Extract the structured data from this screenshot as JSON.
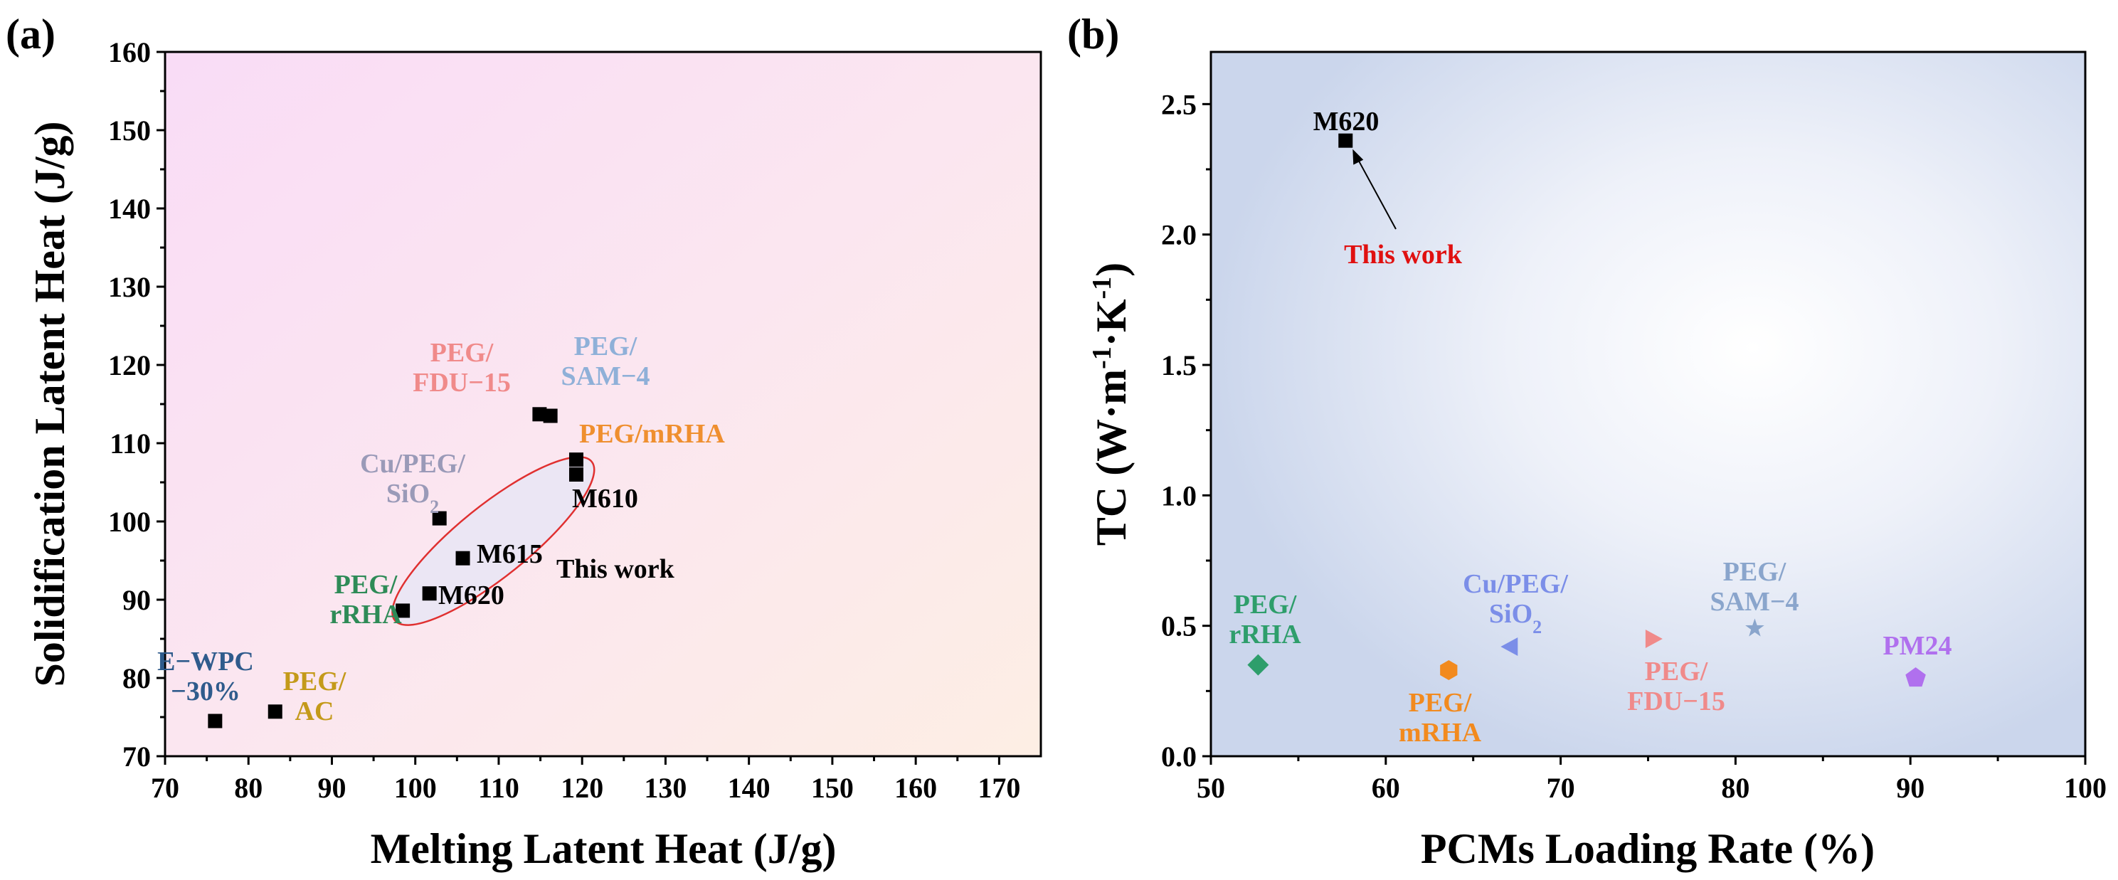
{
  "chart_data": [
    {
      "type": "scatter",
      "panel_label": "(a)",
      "xlabel": "Melting Latent Heat (J/g)",
      "ylabel": "Solidification Latent Heat (J/g)",
      "xlim": [
        70,
        175
      ],
      "ylim": [
        70,
        160
      ],
      "xticks": [
        70,
        80,
        90,
        100,
        110,
        120,
        130,
        140,
        150,
        160,
        170
      ],
      "yticks": [
        70,
        80,
        90,
        100,
        110,
        120,
        130,
        140,
        150,
        160
      ],
      "series": [
        {
          "name": "E-WPC-30%",
          "x": 76,
          "y": 74.5,
          "marker": "square",
          "color": "#000000"
        },
        {
          "name": "PEG/AC",
          "x": 83.2,
          "y": 75.7,
          "marker": "square",
          "color": "#000000"
        },
        {
          "name": "PEG/rRHA",
          "x": 98.5,
          "y": 88.6,
          "marker": "square",
          "color": "#000000"
        },
        {
          "name": "M620",
          "x": 101.7,
          "y": 90.8,
          "marker": "square",
          "color": "#000000"
        },
        {
          "name": "M615",
          "x": 105.7,
          "y": 95.3,
          "marker": "square",
          "color": "#000000"
        },
        {
          "name": "Cu/PEG/SiO2",
          "x": 102.9,
          "y": 100.4,
          "marker": "square",
          "color": "#000000"
        },
        {
          "name": "M610",
          "x": 119.3,
          "y": 106.0,
          "marker": "square",
          "color": "#000000"
        },
        {
          "name": "PEG/mRHA",
          "x": 119.3,
          "y": 107.9,
          "marker": "square",
          "color": "#000000"
        },
        {
          "name": "PEG/FDU-15",
          "x": 114.9,
          "y": 113.7,
          "marker": "square",
          "color": "#000000"
        },
        {
          "name": "PEG/SAM-4",
          "x": 116.2,
          "y": 113.5,
          "marker": "square",
          "color": "#000000"
        }
      ],
      "annotations": [
        {
          "lines": [
            "E−WPC",
            "−30%"
          ],
          "color": "#2f5b8c"
        },
        {
          "lines": [
            "PEG/",
            "AC"
          ],
          "color": "#c49a1a"
        },
        {
          "lines": [
            "PEG/",
            "rRHA"
          ],
          "color": "#2e8b57"
        },
        {
          "lines": [
            "M620"
          ],
          "color": "#000000"
        },
        {
          "lines": [
            "M615"
          ],
          "color": "#000000"
        },
        {
          "lines": [
            "Cu/PEG/",
            "SiO2"
          ],
          "color": "#9a9ab8"
        },
        {
          "lines": [
            "M610"
          ],
          "color": "#000000"
        },
        {
          "lines": [
            "PEG/mRHA"
          ],
          "color": "#ef8f2f"
        },
        {
          "lines": [
            "PEG/",
            "FDU−15"
          ],
          "color": "#f08a8a"
        },
        {
          "lines": [
            "PEG/",
            "SAM−4"
          ],
          "color": "#8fb0d8"
        },
        {
          "lines": [
            "This work"
          ],
          "color": "#000000"
        }
      ],
      "highlight": {
        "label": "This work",
        "shape": "ellipse",
        "color": "#e03030"
      }
    },
    {
      "type": "scatter",
      "panel_label": "(b)",
      "xlabel": "PCMs Loading Rate (%)",
      "ylabel": "TC (W·m⁻¹·K⁻¹)",
      "ylabel_parts": [
        "TC (W·m",
        "-1",
        "·K",
        "-1",
        ")"
      ],
      "xlim": [
        50,
        100
      ],
      "ylim": [
        0,
        2.7
      ],
      "xticks": [
        50,
        60,
        70,
        80,
        90,
        100
      ],
      "yticks": [
        0.0,
        0.5,
        1.0,
        1.5,
        2.0,
        2.5
      ],
      "ytick_labels": [
        "0.0",
        "0.5",
        "1.0",
        "1.5",
        "2.0",
        "2.5"
      ],
      "series": [
        {
          "name": "M620",
          "x": 57.7,
          "y": 2.36,
          "marker": "square",
          "color": "#000000"
        },
        {
          "name": "PEG/rRHA",
          "x": 52.7,
          "y": 0.35,
          "marker": "diamond",
          "color": "#2e9e6b"
        },
        {
          "name": "PEG/mRHA",
          "x": 63.6,
          "y": 0.33,
          "marker": "hexagon",
          "color": "#f28a1e"
        },
        {
          "name": "Cu/PEG/SiO2",
          "x": 67.1,
          "y": 0.42,
          "marker": "triangle-left",
          "color": "#7b8ee8"
        },
        {
          "name": "PEG/FDU-15",
          "x": 75.3,
          "y": 0.45,
          "marker": "triangle-right",
          "color": "#f08a8a"
        },
        {
          "name": "PEG/SAM-4",
          "x": 81.1,
          "y": 0.49,
          "marker": "star",
          "color": "#8aa5cc"
        },
        {
          "name": "PM24",
          "x": 90.3,
          "y": 0.3,
          "marker": "pentagon",
          "color": "#b070ee"
        }
      ],
      "annotations": [
        {
          "lines": [
            "M620"
          ],
          "color": "#000000"
        },
        {
          "lines": [
            "This work"
          ],
          "color": "#e01010"
        },
        {
          "lines": [
            "PEG/",
            "rRHA"
          ],
          "color": "#2e9e6b"
        },
        {
          "lines": [
            "PEG/",
            "mRHA"
          ],
          "color": "#f28a1e"
        },
        {
          "lines": [
            "Cu/PEG/",
            "SiO2"
          ],
          "color": "#7b8ee8"
        },
        {
          "lines": [
            "PEG/",
            "FDU−15"
          ],
          "color": "#f08a8a"
        },
        {
          "lines": [
            "PEG/",
            "SAM−4"
          ],
          "color": "#8aa5cc"
        },
        {
          "lines": [
            "PM24"
          ],
          "color": "#b070ee"
        }
      ]
    }
  ]
}
